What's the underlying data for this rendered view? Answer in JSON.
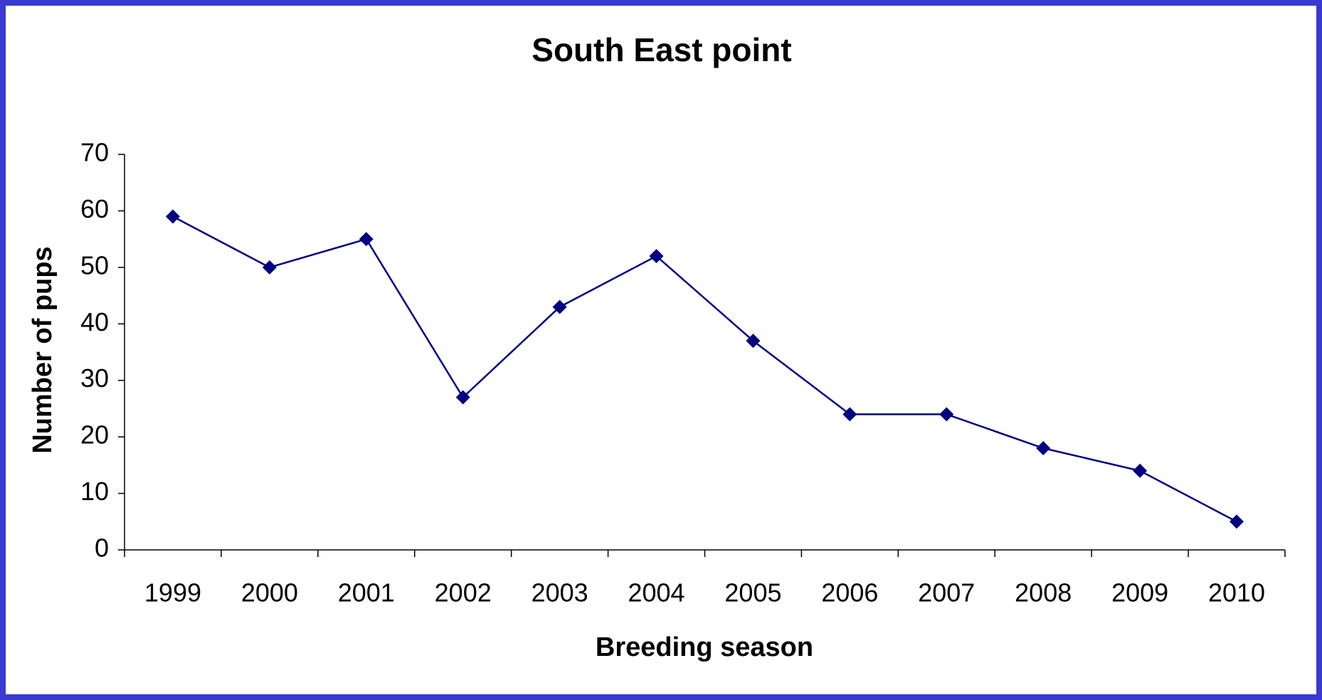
{
  "chart_data": {
    "type": "line",
    "title": "South East point",
    "x_label": "Breeding season",
    "y_label": "Number of pups",
    "categories": [
      "1999",
      "2000",
      "2001",
      "2002",
      "2003",
      "2004",
      "2005",
      "2006",
      "2007",
      "2008",
      "2009",
      "2010"
    ],
    "series": [
      {
        "name": "South East point",
        "color": "#000080",
        "values": [
          59,
          50,
          55,
          27,
          43,
          52,
          37,
          24,
          24,
          18,
          14,
          5
        ]
      }
    ],
    "ylim": [
      0,
      70
    ],
    "yticks": [
      0,
      10,
      20,
      30,
      40,
      50,
      60,
      70
    ],
    "grid": false,
    "legend": false
  }
}
